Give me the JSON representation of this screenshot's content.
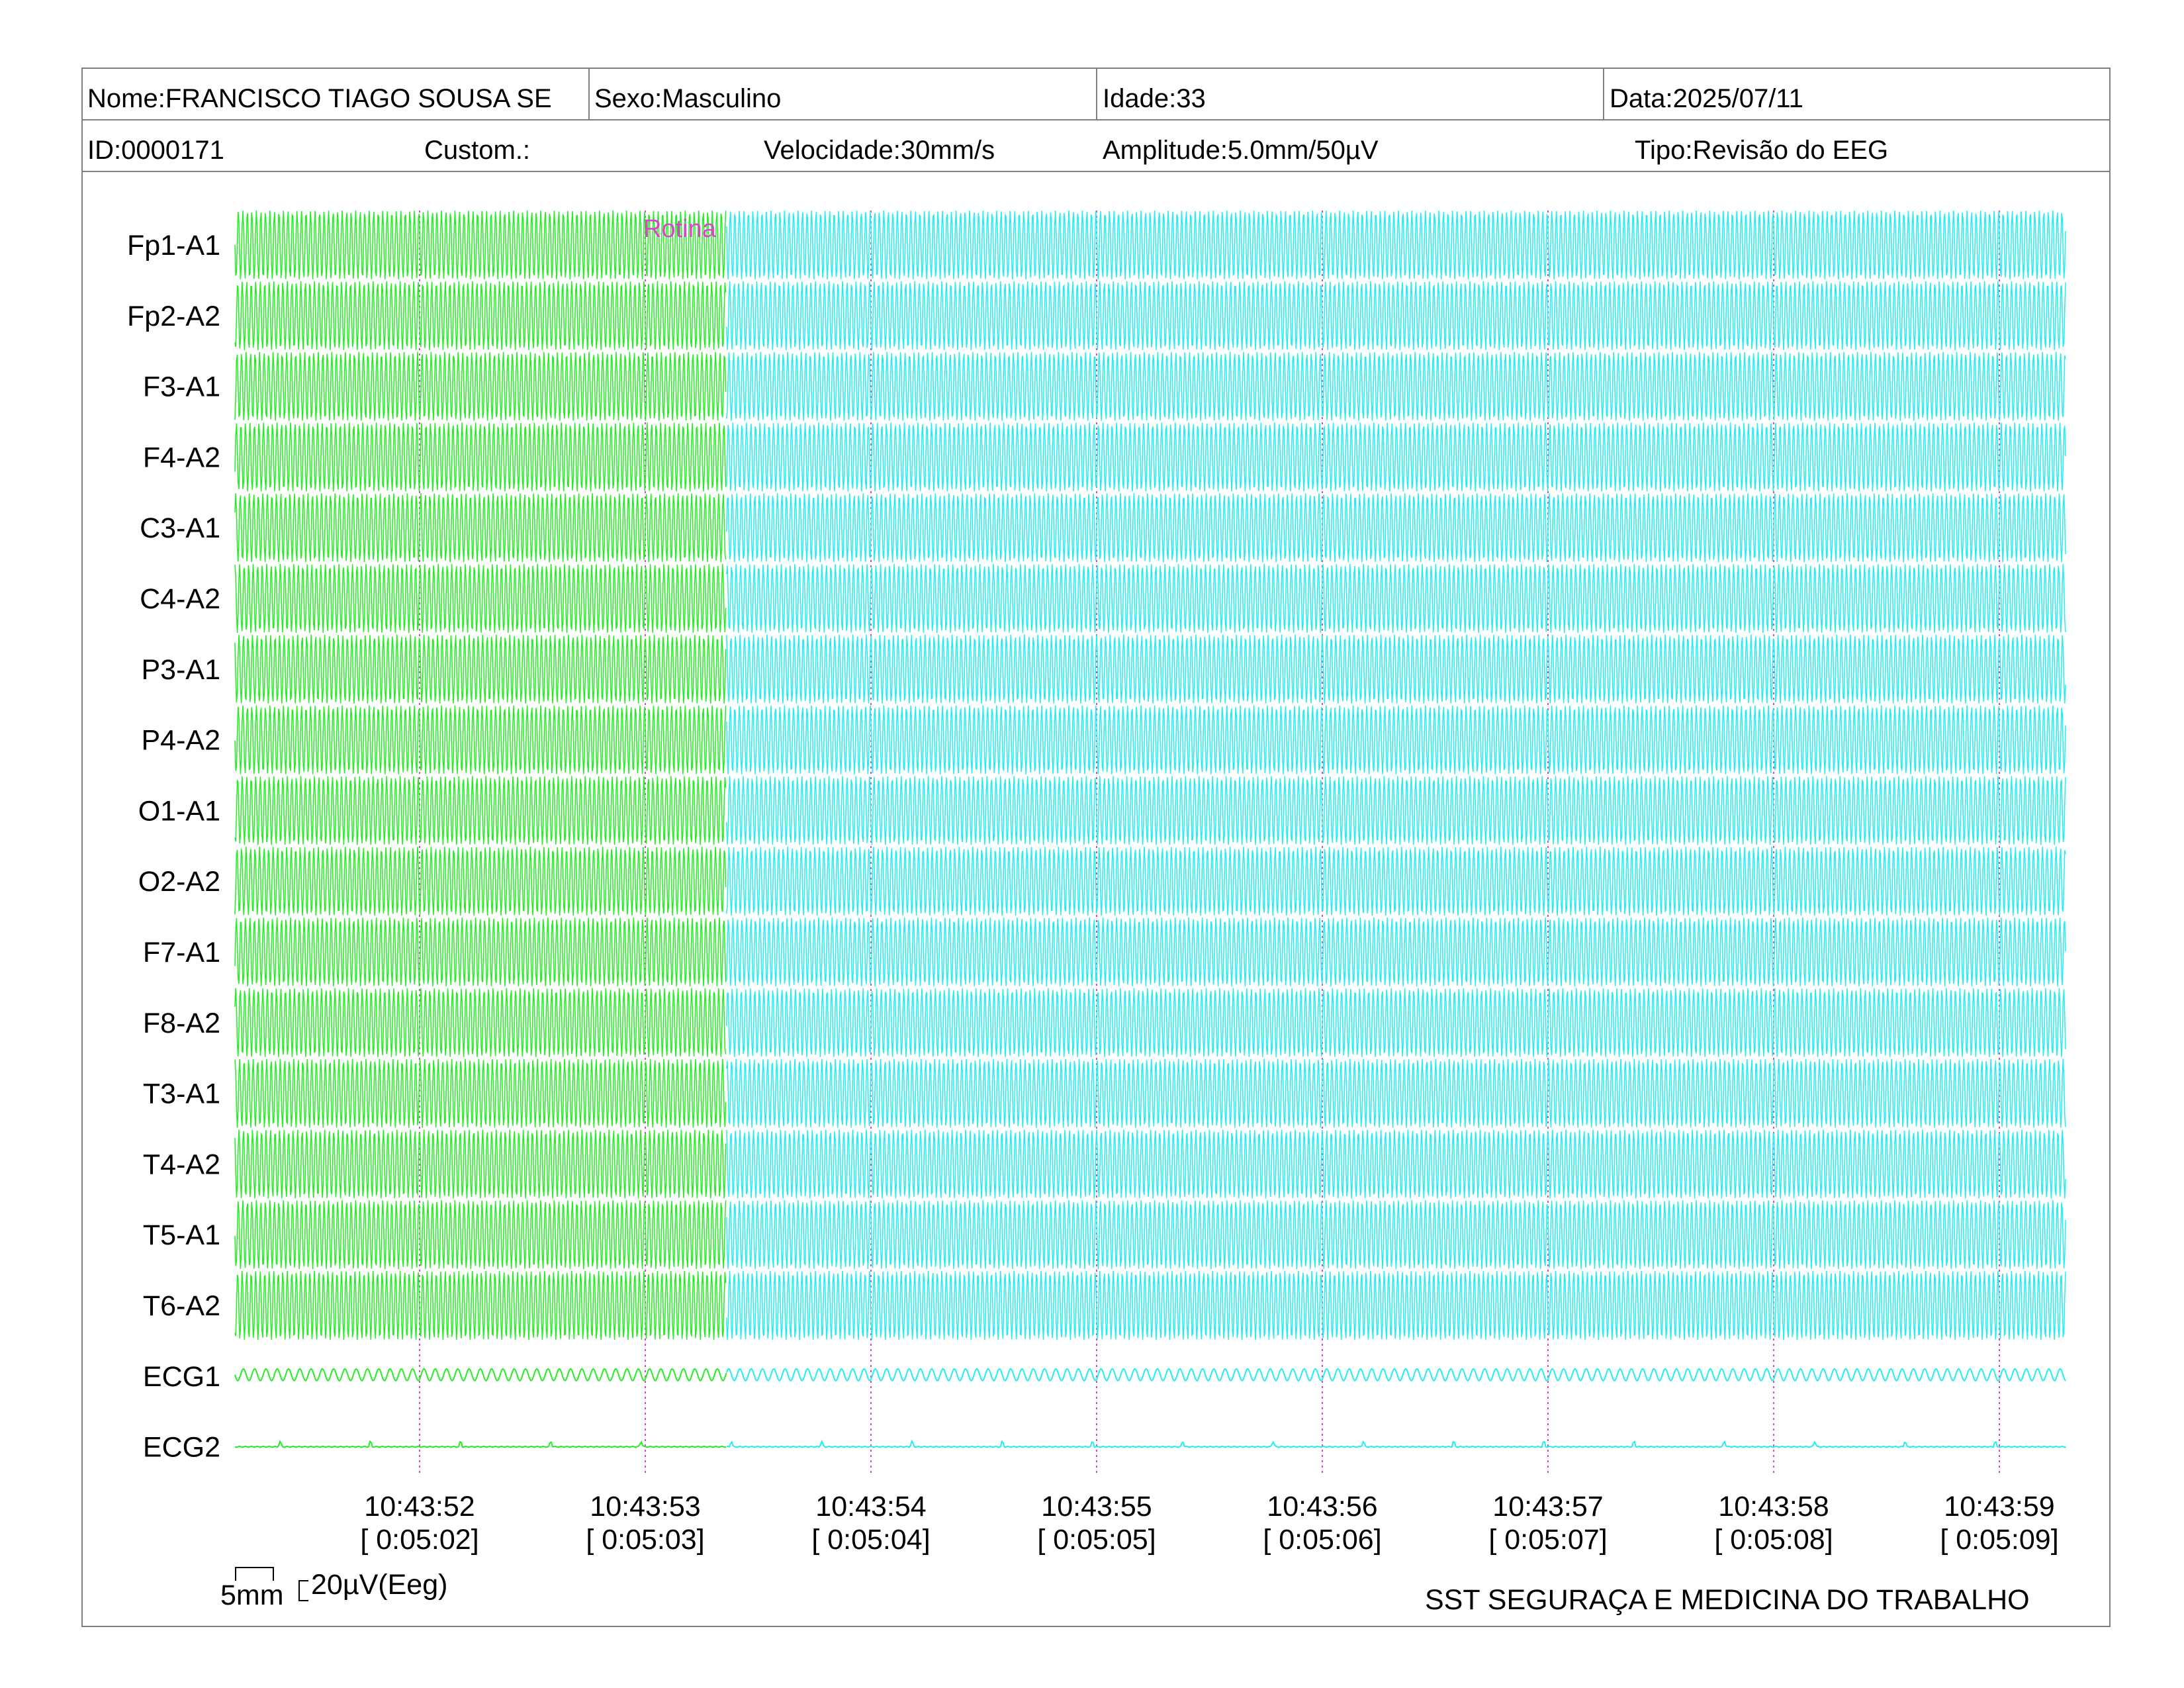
{
  "header": {
    "nome": "Nome:FRANCISCO TIAGO SOUSA SE",
    "sexo": "Sexo:Masculino",
    "idade": "Idade:33",
    "data": "Data:2025/07/11",
    "id": "ID:0000171",
    "custom": "Custom.:",
    "velocidade": "Velocidade:30mm/s",
    "amplitude": "Amplitude:5.0mm/50µV",
    "tipo": "Tipo:Revisão do EEG"
  },
  "annotation": "Rotina",
  "colors": {
    "segment_before": "#22ee22",
    "segment_after": "#22eeee",
    "marker": "#dd44cc",
    "annotation": "#dd44cc"
  },
  "chart_data": {
    "type": "line",
    "channels": [
      "Fp1-A1",
      "Fp2-A2",
      "F3-A1",
      "F4-A2",
      "C3-A1",
      "C4-A2",
      "P3-A1",
      "P4-A2",
      "O1-A1",
      "O2-A2",
      "F7-A1",
      "F8-A2",
      "T3-A1",
      "T4-A2",
      "T5-A1",
      "T6-A2",
      "ECG1",
      "ECG2"
    ],
    "time_ticks": [
      {
        "clock": "10:43:52",
        "elapsed": "[ 0:05:02]"
      },
      {
        "clock": "10:43:53",
        "elapsed": "[ 0:05:03]"
      },
      {
        "clock": "10:43:54",
        "elapsed": "[ 0:05:04]"
      },
      {
        "clock": "10:43:55",
        "elapsed": "[ 0:05:05]"
      },
      {
        "clock": "10:43:56",
        "elapsed": "[ 0:05:06]"
      },
      {
        "clock": "10:43:57",
        "elapsed": "[ 0:05:07]"
      },
      {
        "clock": "10:43:58",
        "elapsed": "[ 0:05:08]"
      },
      {
        "clock": "10:43:59",
        "elapsed": "[ 0:05:09]"
      }
    ],
    "x_range_seconds": [
      -0.8,
      7.3
    ],
    "annotation_time_seconds": 1.36,
    "eeg_frequency_hz": 50,
    "ecg1_frequency_hz": 20,
    "ecg2_beat_interval_s": 0.4
  },
  "scale": {
    "time_label": "5mm",
    "amp_label": "20µV(Eeg)"
  },
  "footer_text": "SST SEGURAÇA E MEDICINA DO TRABALHO"
}
